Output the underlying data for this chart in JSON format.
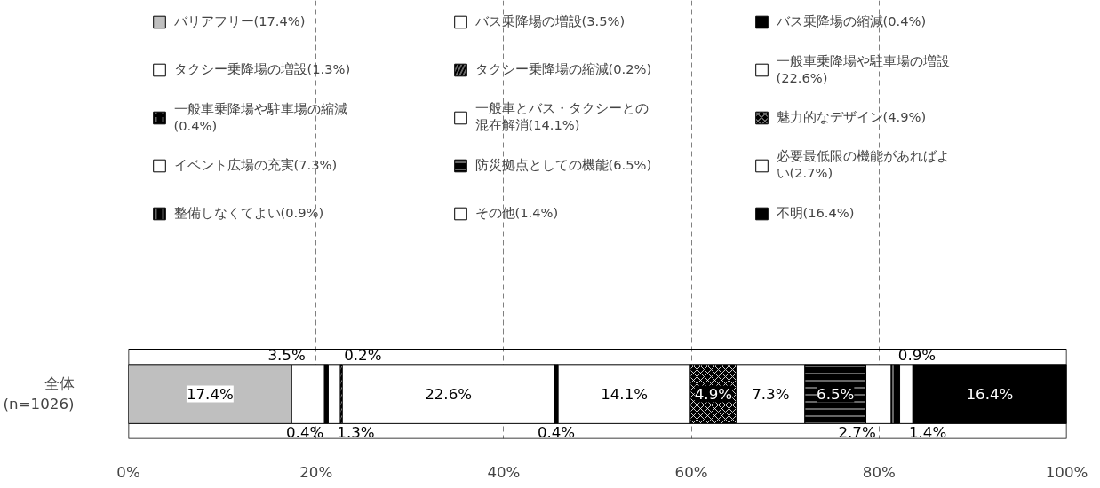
{
  "chart_data": {
    "type": "bar",
    "orientation": "horizontal",
    "stacked": true,
    "categories": [
      "全体\n(n=1026)"
    ],
    "series": [
      {
        "name": "バリアフリー(17.4%)",
        "color": "#bfbfbf",
        "values": [
          17.4
        ],
        "value_labels": [
          "17.4%"
        ]
      },
      {
        "name": "バス乗降場の増設(3.5%)",
        "color": "#ffffff",
        "values": [
          3.5
        ],
        "value_labels": [
          "3.5%"
        ]
      },
      {
        "name": "バス乗降場の縮減(0.4%)",
        "color": "#000000",
        "values": [
          0.4
        ],
        "value_labels": [
          "0.4%"
        ]
      },
      {
        "name": "タクシー乗降場の増設(1.3%)",
        "color": "#ffffff",
        "values": [
          1.3
        ],
        "value_labels": [
          "1.3%"
        ]
      },
      {
        "name": "タクシー乗降場の縮減(0.2%)",
        "color": "#000000",
        "values": [
          0.2
        ],
        "value_labels": [
          "0.2%"
        ]
      },
      {
        "name": "一般車乗降場や駐車場の増設(22.6%)",
        "color": "#ffffff",
        "values": [
          22.6
        ],
        "value_labels": [
          "22.6%"
        ]
      },
      {
        "name": "一般車乗降場や駐車場の縮減(0.4%)",
        "color": "#000000",
        "values": [
          0.4
        ],
        "value_labels": [
          "0.4%"
        ]
      },
      {
        "name": "一般車とバス・タクシーとの混在解消(14.1%)",
        "color": "#ffffff",
        "values": [
          14.1
        ],
        "value_labels": [
          "14.1%"
        ]
      },
      {
        "name": "魅力的なデザイン(4.9%)",
        "color": "#000000",
        "values": [
          4.9
        ],
        "value_labels": [
          "4.9%"
        ]
      },
      {
        "name": "イベント広場の充実(7.3%)",
        "color": "#ffffff",
        "values": [
          7.3
        ],
        "value_labels": [
          "7.3%"
        ]
      },
      {
        "name": "防災拠点としての機能(6.5%)",
        "color": "#000000",
        "values": [
          6.5
        ],
        "value_labels": [
          "6.5%"
        ]
      },
      {
        "name": "必要最低限の機能があればよい(2.7%)",
        "color": "#ffffff",
        "values": [
          2.7
        ],
        "value_labels": [
          "2.7%"
        ]
      },
      {
        "name": "整備しなくてよい(0.9%)",
        "color": "#000000",
        "values": [
          0.9
        ],
        "value_labels": [
          "0.9%"
        ]
      },
      {
        "name": "その他(1.4%)",
        "color": "#ffffff",
        "values": [
          1.4
        ],
        "value_labels": [
          "1.4%"
        ]
      },
      {
        "name": "不明(16.4%)",
        "color": "#000000",
        "values": [
          16.4
        ],
        "value_labels": [
          "16.4%"
        ]
      }
    ],
    "xlim": [
      0,
      100
    ],
    "xticks": [
      {
        "value": 0,
        "label": "0%"
      },
      {
        "value": 20,
        "label": "20%"
      },
      {
        "value": 40,
        "label": "40%"
      },
      {
        "value": 60,
        "label": "60%"
      },
      {
        "value": 80,
        "label": "80%"
      },
      {
        "value": 100,
        "label": "100%"
      }
    ],
    "grid": "x",
    "legend": "top"
  }
}
